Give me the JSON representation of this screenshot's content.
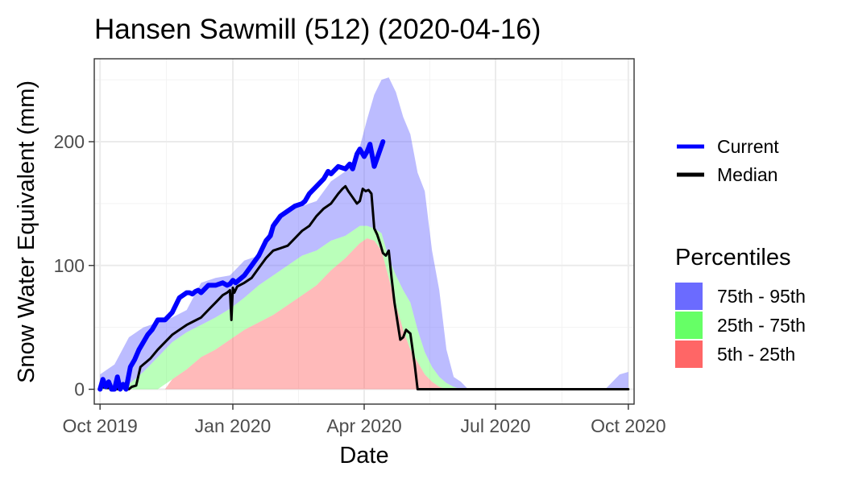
{
  "chart_data": {
    "type": "area",
    "title": "Hansen Sawmill (512) (2020-04-16)",
    "xlabel": "Date",
    "ylabel": "Snow Water Equivalent (mm)",
    "x_unit": "days since 2019-10-01",
    "xlim": [
      -4,
      370
    ],
    "ylim": [
      -12,
      267
    ],
    "x_ticks": [
      {
        "value": 0,
        "label": "Oct 2019"
      },
      {
        "value": 92,
        "label": "Jan 2020"
      },
      {
        "value": 183,
        "label": "Apr 2020"
      },
      {
        "value": 274,
        "label": "Jul 2020"
      },
      {
        "value": 366,
        "label": "Oct 2020"
      }
    ],
    "y_ticks": [
      {
        "value": 0,
        "label": "0"
      },
      {
        "value": 100,
        "label": "100"
      },
      {
        "value": 200,
        "label": "200"
      }
    ],
    "series": [
      {
        "name": "Current",
        "color": "#0000ff",
        "x": [
          0,
          2,
          4,
          6,
          8,
          10,
          12,
          14,
          16,
          18,
          21,
          24,
          27,
          30,
          33,
          36,
          40,
          45,
          50,
          55,
          60,
          62,
          64,
          66,
          68,
          70,
          75,
          80,
          85,
          88,
          90,
          92,
          94,
          96,
          98,
          100,
          105,
          110,
          115,
          118,
          120,
          125,
          130,
          135,
          140,
          142,
          145,
          150,
          155,
          158,
          160,
          165,
          170,
          173,
          175,
          178,
          180,
          183,
          185,
          187,
          190,
          193,
          196
        ],
        "y": [
          0,
          8,
          2,
          6,
          0,
          0,
          10,
          0,
          4,
          0,
          18,
          24,
          32,
          38,
          44,
          48,
          56,
          56,
          62,
          74,
          78,
          78,
          77,
          79,
          80,
          78,
          84,
          84,
          86,
          84,
          85,
          88,
          86,
          88,
          90,
          92,
          100,
          108,
          120,
          124,
          132,
          140,
          144,
          148,
          150,
          152,
          158,
          164,
          170,
          176,
          174,
          180,
          178,
          182,
          178,
          190,
          194,
          188,
          192,
          198,
          180,
          190,
          200
        ]
      },
      {
        "name": "Median",
        "color": "#000000",
        "x": [
          0,
          5,
          10,
          12,
          15,
          18,
          20,
          22,
          25,
          28,
          30,
          32,
          35,
          40,
          45,
          50,
          55,
          60,
          65,
          70,
          75,
          80,
          85,
          88,
          90,
          91,
          92,
          93,
          95,
          100,
          105,
          110,
          115,
          120,
          125,
          130,
          135,
          140,
          145,
          150,
          155,
          160,
          165,
          168,
          170,
          172,
          175,
          178,
          180,
          182,
          184,
          186,
          188,
          190,
          192,
          194,
          196,
          198,
          200,
          202,
          204,
          206,
          208,
          210,
          212,
          215,
          218,
          220,
          222,
          225,
          230,
          240,
          250,
          260,
          280,
          300,
          320,
          340,
          366
        ],
        "y": [
          2,
          1,
          1,
          0,
          3,
          1,
          0,
          2,
          3,
          18,
          20,
          22,
          25,
          32,
          38,
          44,
          48,
          52,
          55,
          58,
          64,
          70,
          76,
          78,
          80,
          56,
          82,
          78,
          83,
          86,
          90,
          98,
          106,
          112,
          114,
          116,
          122,
          128,
          132,
          140,
          146,
          150,
          158,
          162,
          164,
          160,
          155,
          150,
          152,
          162,
          160,
          161,
          158,
          130,
          125,
          118,
          110,
          108,
          112,
          90,
          70,
          55,
          40,
          42,
          48,
          45,
          20,
          0,
          0,
          0,
          0,
          0,
          0,
          0,
          0,
          0,
          0,
          0,
          0
        ]
      }
    ],
    "bands": [
      {
        "name": "75th - 95th",
        "color": "#6b6bff",
        "opacity": 0.45,
        "x": [
          0,
          10,
          20,
          30,
          40,
          50,
          60,
          70,
          80,
          90,
          100,
          110,
          120,
          130,
          140,
          150,
          160,
          170,
          175,
          180,
          185,
          190,
          195,
          200,
          205,
          210,
          215,
          220,
          225,
          230,
          235,
          240,
          245,
          250,
          255,
          260,
          270,
          280,
          300,
          330,
          350,
          360,
          366
        ],
        "lower": [
          2,
          3,
          4,
          14,
          26,
          38,
          46,
          52,
          58,
          65,
          74,
          84,
          92,
          100,
          108,
          112,
          120,
          124,
          128,
          132,
          132,
          130,
          126,
          106,
          92,
          80,
          70,
          48,
          30,
          18,
          10,
          5,
          2,
          0,
          0,
          0,
          0,
          0,
          0,
          0,
          0,
          0,
          0
        ],
        "upper": [
          12,
          20,
          42,
          50,
          54,
          58,
          64,
          86,
          90,
          92,
          104,
          108,
          136,
          144,
          148,
          152,
          168,
          176,
          184,
          196,
          218,
          238,
          250,
          252,
          240,
          220,
          206,
          175,
          160,
          112,
          80,
          32,
          10,
          6,
          0,
          0,
          0,
          0,
          0,
          0,
          0,
          12,
          14
        ]
      },
      {
        "name": "25th - 75th",
        "color": "#66ff66",
        "opacity": 0.45,
        "x": [
          0,
          10,
          20,
          30,
          40,
          50,
          60,
          70,
          80,
          90,
          100,
          110,
          120,
          130,
          140,
          150,
          160,
          170,
          175,
          180,
          185,
          190,
          195,
          200,
          205,
          210,
          215,
          220,
          225,
          230,
          235,
          240,
          245,
          250,
          260,
          366
        ],
        "lower": [
          0,
          0,
          0,
          0,
          0,
          8,
          16,
          26,
          32,
          40,
          48,
          54,
          60,
          68,
          76,
          84,
          96,
          106,
          112,
          118,
          122,
          120,
          112,
          90,
          68,
          48,
          32,
          22,
          12,
          6,
          2,
          0,
          0,
          0,
          0,
          0
        ],
        "upper": [
          2,
          3,
          4,
          14,
          26,
          38,
          46,
          52,
          58,
          65,
          74,
          84,
          92,
          100,
          108,
          112,
          120,
          124,
          128,
          132,
          132,
          130,
          126,
          106,
          92,
          80,
          70,
          48,
          30,
          18,
          10,
          5,
          2,
          0,
          0,
          0
        ]
      },
      {
        "name": "5th - 25th",
        "color": "#ff6666",
        "opacity": 0.45,
        "x": [
          0,
          10,
          20,
          30,
          40,
          45,
          50,
          60,
          70,
          80,
          90,
          100,
          110,
          120,
          130,
          140,
          150,
          160,
          170,
          175,
          180,
          185,
          190,
          195,
          200,
          205,
          210,
          215,
          220,
          225,
          230,
          235,
          240,
          245,
          250,
          260,
          366
        ],
        "lower": [
          0,
          0,
          0,
          0,
          0,
          0,
          0,
          0,
          0,
          0,
          0,
          0,
          0,
          0,
          0,
          0,
          0,
          0,
          0,
          0,
          0,
          0,
          0,
          0,
          0,
          0,
          0,
          0,
          0,
          0,
          0,
          0,
          0,
          0,
          0,
          0,
          0
        ],
        "upper": [
          0,
          0,
          0,
          0,
          0,
          0,
          8,
          16,
          26,
          32,
          40,
          48,
          54,
          60,
          68,
          76,
          84,
          96,
          106,
          112,
          118,
          122,
          120,
          112,
          90,
          68,
          48,
          32,
          22,
          12,
          6,
          2,
          0,
          0,
          0,
          0,
          0
        ]
      }
    ],
    "legend": {
      "lines": [
        {
          "label": "Current",
          "color": "#0000ff"
        },
        {
          "label": "Median",
          "color": "#000000"
        }
      ],
      "title": "Percentiles",
      "fills": [
        {
          "label": "75th - 95th",
          "color": "#6b6bff"
        },
        {
          "label": "25th - 75th",
          "color": "#66ff66"
        },
        {
          "label": "5th - 25th",
          "color": "#ff6666"
        }
      ]
    }
  }
}
